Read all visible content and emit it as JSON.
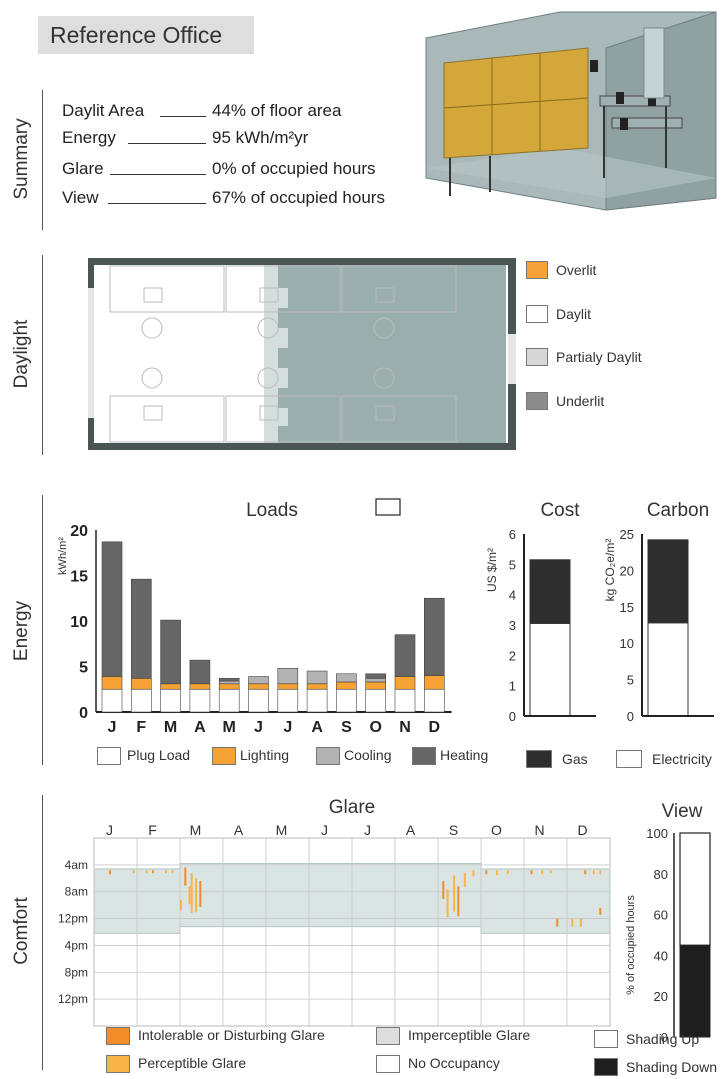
{
  "page_title": "Reference Office",
  "sections": {
    "summary": "Summary",
    "daylight": "Daylight",
    "energy": "Energy",
    "comfort": "Comfort"
  },
  "summary": [
    {
      "key": "Daylit Area",
      "value": "44% of floor area"
    },
    {
      "key": "Energy",
      "value": "95 kWh/m²yr"
    },
    {
      "key": "Glare",
      "value": "0% of occupied hours"
    },
    {
      "key": "View",
      "value": "67% of occupied hours"
    }
  ],
  "daylight_legend": [
    {
      "label": "Overlit",
      "color": "#f4a13a"
    },
    {
      "label": "Daylit",
      "color": "#ffffff"
    },
    {
      "label": "Partialy Daylit",
      "color": "#d7d7d7"
    },
    {
      "label": "Underlit",
      "color": "#8c8c8c"
    }
  ],
  "colors": {
    "plug": "#ffffff",
    "lighting": "#f6a234",
    "cooling": "#b3b3b3",
    "heating": "#666666",
    "gas": "#2e2e2e",
    "electricity": "#ffffff",
    "glare_intolerable": "#f28c28",
    "glare_perceptible": "#f7b548",
    "glare_imperceptible": "#d9e4e3",
    "shading_down": "#1e1e1e"
  },
  "chart_data": [
    {
      "type": "bar",
      "title": "Loads",
      "ylabel": "kWh/m²",
      "ylim": [
        0,
        20
      ],
      "yticks": [
        0,
        5,
        10,
        15,
        20
      ],
      "categories": [
        "J",
        "F",
        "M",
        "A",
        "M",
        "J",
        "J",
        "A",
        "S",
        "O",
        "N",
        "D"
      ],
      "series": [
        {
          "name": "Plug Load",
          "values": [
            2.5,
            2.5,
            2.5,
            2.5,
            2.5,
            2.5,
            2.5,
            2.5,
            2.5,
            2.5,
            2.5,
            2.5
          ]
        },
        {
          "name": "Lighting",
          "values": [
            1.4,
            1.2,
            0.6,
            0.6,
            0.6,
            0.6,
            0.6,
            0.6,
            0.8,
            0.8,
            1.4,
            1.5
          ]
        },
        {
          "name": "Cooling",
          "values": [
            0,
            0,
            0,
            0,
            0.3,
            0.8,
            1.7,
            1.4,
            0.9,
            0.4,
            0,
            0
          ]
        },
        {
          "name": "Heating",
          "values": [
            14.8,
            10.9,
            7.0,
            2.6,
            0.3,
            0,
            0,
            0,
            0,
            0.5,
            4.6,
            8.5
          ]
        }
      ]
    },
    {
      "type": "bar",
      "title": "Cost",
      "ylabel": "US $/m²",
      "ylim": [
        0,
        6
      ],
      "yticks": [
        0,
        1,
        2,
        3,
        4,
        5,
        6
      ],
      "series": [
        {
          "name": "Electricity",
          "values": [
            3.05
          ]
        },
        {
          "name": "Gas",
          "values": [
            2.1
          ]
        }
      ]
    },
    {
      "type": "bar",
      "title": "Carbon",
      "ylabel": "kg CO₂e/m²",
      "ylim": [
        0,
        25
      ],
      "yticks": [
        0,
        5,
        10,
        15,
        20,
        25
      ],
      "series": [
        {
          "name": "Electricity",
          "values": [
            12.8
          ]
        },
        {
          "name": "Gas",
          "values": [
            11.4
          ]
        }
      ]
    },
    {
      "type": "heatmap",
      "title": "Glare",
      "months": [
        "J",
        "F",
        "M",
        "A",
        "M",
        "J",
        "J",
        "A",
        "S",
        "O",
        "N",
        "D"
      ],
      "hour_labels": [
        "4am",
        "8am",
        "12pm",
        "4pm",
        "8pm",
        "12pm"
      ]
    },
    {
      "type": "bar",
      "title": "View",
      "ylabel": "% of occupied hours",
      "ylim": [
        0,
        100
      ],
      "yticks": [
        0,
        20,
        40,
        60,
        80,
        100
      ],
      "series": [
        {
          "name": "Shading Down",
          "values": [
            45
          ]
        },
        {
          "name": "Shading Up",
          "values": [
            55
          ]
        }
      ]
    }
  ],
  "energy_legend": [
    "Plug Load",
    "Lighting",
    "Cooling",
    "Heating"
  ],
  "cost_legend": [
    "Gas",
    "Electricity"
  ],
  "glare_legend": [
    "Intolerable or Disturbing Glare",
    "Perceptible Glare",
    "Imperceptible  Glare",
    "No Occupancy",
    "Shading Up",
    "Shading Down"
  ]
}
